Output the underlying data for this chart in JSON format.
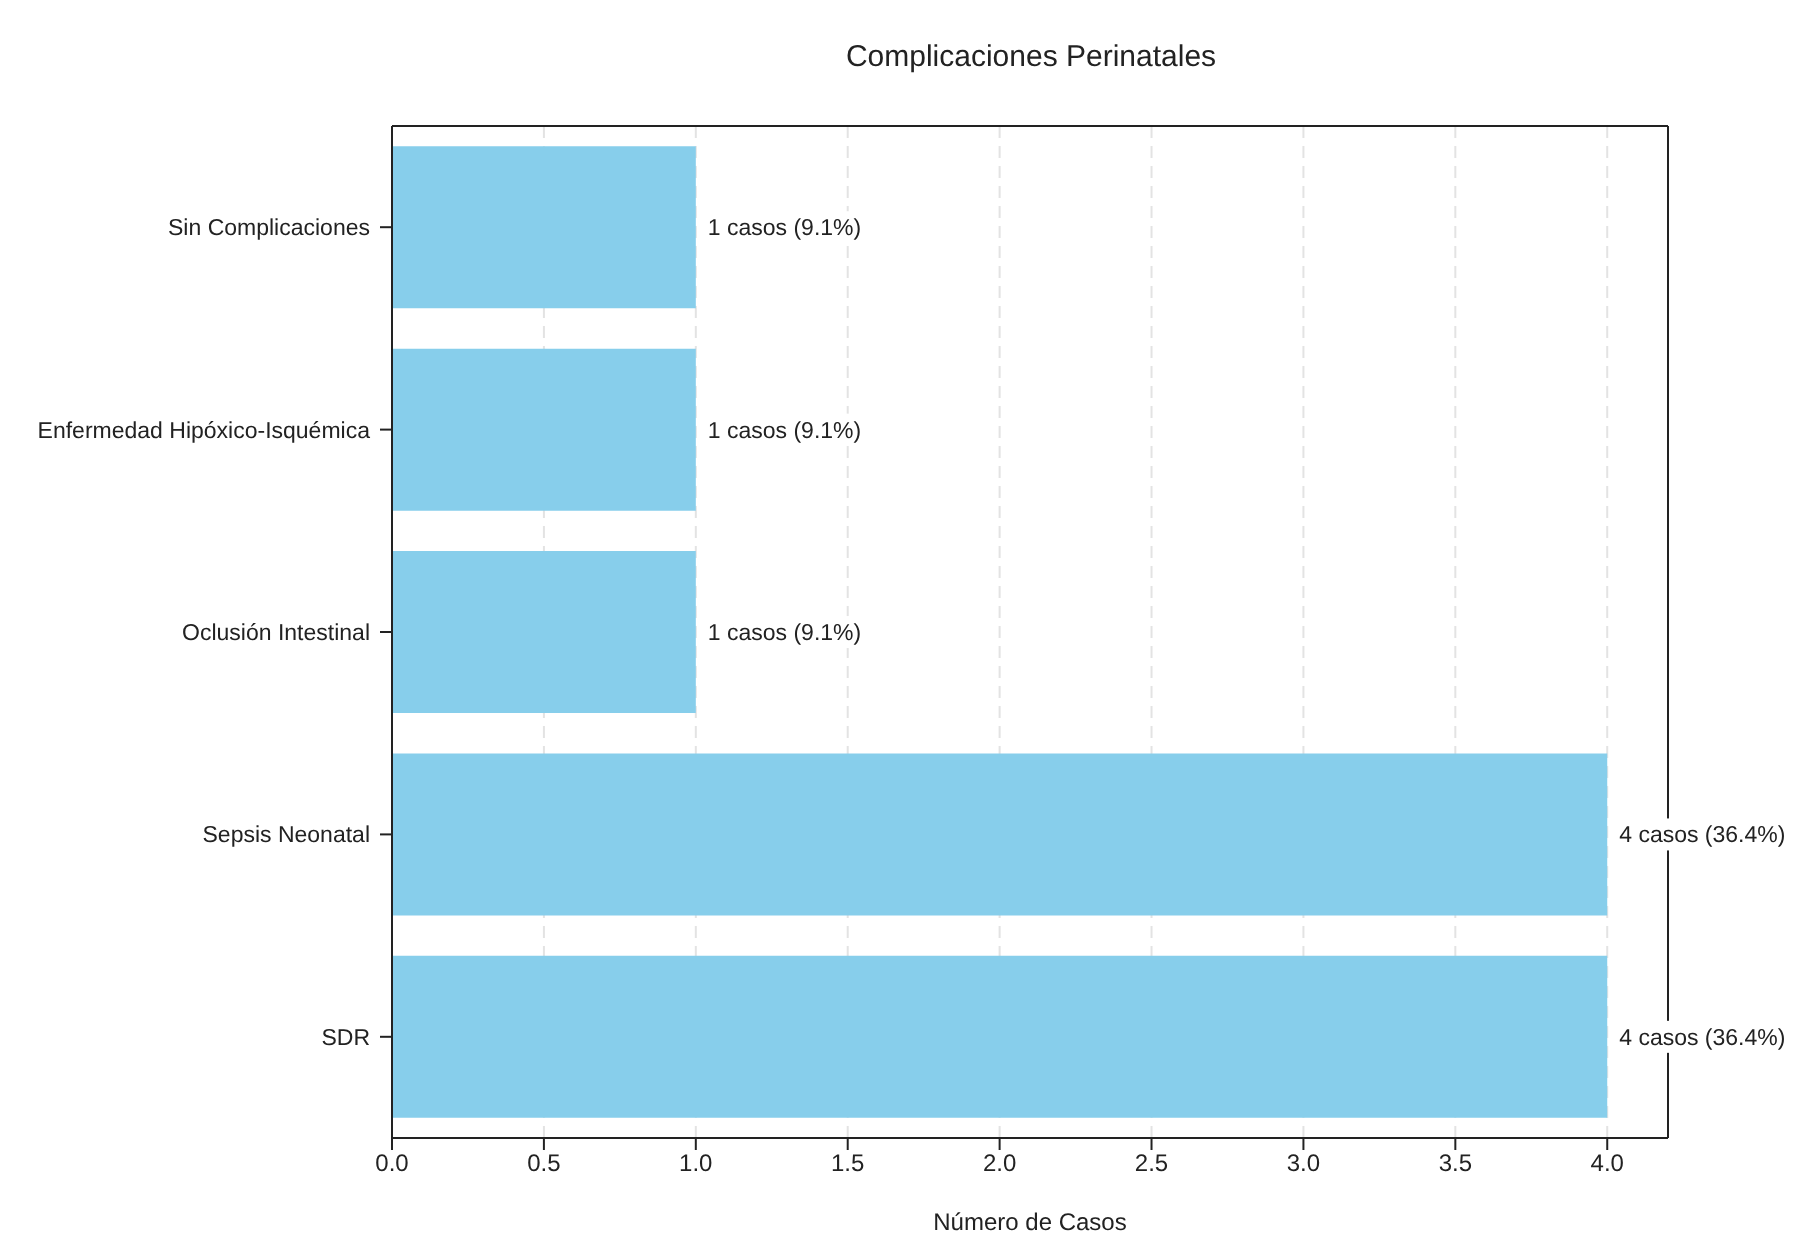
{
  "chart_data": {
    "type": "bar",
    "orientation": "horizontal",
    "title": "Complicaciones Perinatales",
    "xlabel": "Número de Casos",
    "categories": [
      "Sin Complicaciones",
      "Enfermedad Hipóxico-Isquémica",
      "Oclusión Intestinal",
      "Sepsis Neonatal",
      "SDR"
    ],
    "values": [
      1,
      1,
      1,
      4,
      4
    ],
    "color": "#87ceeb",
    "value_labels": [
      "1 casos (9.1%)",
      "1 casos (9.1%)",
      "1 casos (9.1%)",
      "4 casos (36.4%)",
      "4 casos (36.4%)"
    ],
    "xlim": [
      0,
      4.2
    ],
    "xticks": [
      {
        "value": 0,
        "label": "0.0"
      },
      {
        "value": 0.5,
        "label": "0.5"
      },
      {
        "value": 1,
        "label": "1.0"
      },
      {
        "value": 1.5,
        "label": "1.5"
      },
      {
        "value": 2,
        "label": "2.0"
      },
      {
        "value": 2.5,
        "label": "2.5"
      },
      {
        "value": 3,
        "label": "3.0"
      },
      {
        "value": 3.5,
        "label": "3.5"
      },
      {
        "value": 4,
        "label": "4.0"
      }
    ],
    "grid": "x"
  }
}
